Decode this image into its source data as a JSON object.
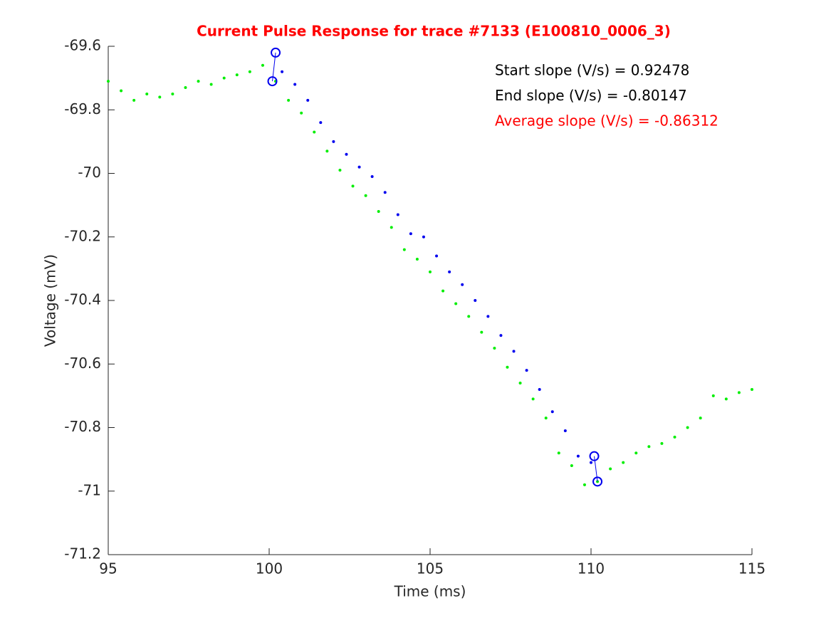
{
  "chart_data": {
    "type": "scatter",
    "title": "Current Pulse Response for trace #7133 (E100810_0006_3)",
    "title_color": "#ff0000",
    "xlabel": "Time (ms)",
    "ylabel": "Voltage (mV)",
    "xlim": [
      95,
      115
    ],
    "ylim": [
      -71.2,
      -69.6
    ],
    "xticks": [
      95,
      100,
      105,
      110,
      115
    ],
    "yticks": [
      -71.2,
      -71,
      -70.8,
      -70.6,
      -70.4,
      -70.2,
      -70,
      -69.8,
      -69.6
    ],
    "series": [
      {
        "color": "#00ee00",
        "marker": "dot",
        "x": [
          95.0,
          95.4,
          95.8,
          96.2,
          96.6,
          97.0,
          97.4,
          97.8,
          98.2,
          98.6,
          99.0,
          99.4,
          99.8,
          100.2,
          100.6,
          101.0,
          101.4,
          101.8,
          102.2,
          102.6,
          103.0,
          103.4,
          103.8,
          104.2,
          104.6,
          105.0,
          105.4,
          105.8,
          106.2,
          106.6,
          107.0,
          107.4,
          107.8,
          108.2,
          108.6,
          109.0,
          109.4,
          109.8,
          110.2,
          110.6,
          111.0,
          111.4,
          111.8,
          112.2,
          112.6,
          113.0,
          113.4,
          113.8,
          114.2,
          114.6,
          115.0
        ],
        "values": [
          -69.71,
          -69.74,
          -69.77,
          -69.75,
          -69.76,
          -69.75,
          -69.73,
          -69.71,
          -69.72,
          -69.7,
          -69.69,
          -69.68,
          -69.66,
          -69.71,
          -69.77,
          -69.81,
          -69.87,
          -69.93,
          -69.99,
          -70.04,
          -70.07,
          -70.12,
          -70.17,
          -70.24,
          -70.27,
          -70.31,
          -70.37,
          -70.41,
          -70.45,
          -70.5,
          -70.55,
          -70.61,
          -70.66,
          -70.71,
          -70.77,
          -70.88,
          -70.92,
          -70.98,
          -70.97,
          -70.93,
          -70.91,
          -70.88,
          -70.86,
          -70.85,
          -70.83,
          -70.8,
          -70.77,
          -70.7,
          -70.71,
          -70.69,
          -70.68
        ]
      },
      {
        "color": "#0000ee",
        "marker": "dot",
        "x": [
          100.4,
          100.8,
          101.2,
          101.6,
          102.0,
          102.4,
          102.8,
          103.2,
          103.6,
          104.0,
          104.4,
          104.8,
          105.2,
          105.6,
          106.0,
          106.4,
          106.8,
          107.2,
          107.6,
          108.0,
          108.4,
          108.8,
          109.2,
          109.6,
          110.0
        ],
        "values": [
          -69.68,
          -69.72,
          -69.77,
          -69.84,
          -69.9,
          -69.94,
          -69.98,
          -70.01,
          -70.06,
          -70.13,
          -70.19,
          -70.2,
          -70.26,
          -70.31,
          -70.35,
          -70.4,
          -70.45,
          -70.51,
          -70.56,
          -70.62,
          -70.68,
          -70.75,
          -70.81,
          -70.89,
          -70.91
        ]
      },
      {
        "color": "#0000ee",
        "marker": "circle",
        "line": true,
        "x": [
          100.1,
          100.2
        ],
        "values": [
          -69.71,
          -69.62
        ]
      },
      {
        "color": "#0000ee",
        "marker": "circle",
        "line": true,
        "x": [
          110.1,
          110.2
        ],
        "values": [
          -70.89,
          -70.97
        ]
      }
    ],
    "annotations": [
      {
        "text": "Start slope (V/s) = 0.92478",
        "color": "#000000"
      },
      {
        "text": "End slope (V/s) = -0.80147",
        "color": "#000000"
      },
      {
        "text": "Average slope (V/s) = -0.86312",
        "color": "#ff0000"
      }
    ]
  }
}
